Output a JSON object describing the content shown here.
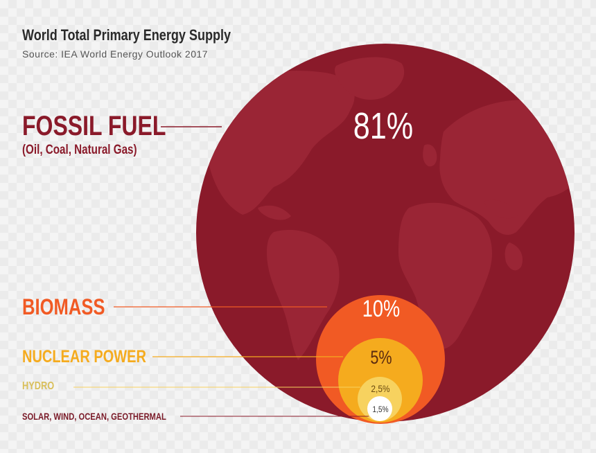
{
  "header": {
    "title": "World Total Primary Energy Supply",
    "source": "Source: IEA World Energy Outlook 2017"
  },
  "colors": {
    "fossil": "#8a1a2a",
    "fossil_map": "#9a2535",
    "biomass": "#f15a24",
    "nuclear": "#f5ab1e",
    "hydro": "#f7d25f",
    "renewables": "#ffffff",
    "hydro_label": "#d9bf5a",
    "renewables_label": "#7a1a28"
  },
  "chart_data": {
    "type": "pie",
    "title": "World Total Primary Energy Supply",
    "subtitle": "Source: IEA World Energy Outlook 2017",
    "categories": [
      {
        "name": "FOSSIL FUEL",
        "detail": "(Oil, Coal, Natural Gas)",
        "value": 81,
        "label": "81%"
      },
      {
        "name": "BIOMASS",
        "value": 10,
        "label": "10%"
      },
      {
        "name": "NUCLEAR POWER",
        "value": 5,
        "label": "5%"
      },
      {
        "name": "HYDRO",
        "value": 2.5,
        "label": "2,5%"
      },
      {
        "name": "SOLAR, WIND, OCEAN, GEOTHERMAL",
        "value": 1.5,
        "label": "1,5%"
      }
    ]
  }
}
